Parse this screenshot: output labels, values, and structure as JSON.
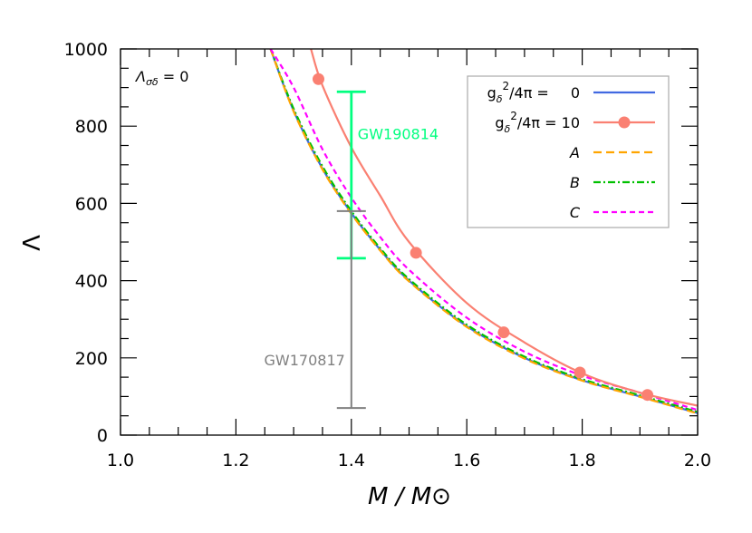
{
  "chart_data": {
    "type": "line",
    "title": "",
    "xlabel": "M / M⊙",
    "ylabel": "Λ",
    "xlim": [
      1.0,
      2.0
    ],
    "ylim": [
      0,
      1000
    ],
    "xticks": [
      "1.0",
      "1.2",
      "1.4",
      "1.6",
      "1.8",
      "2.0"
    ],
    "yticks": [
      "0",
      "200",
      "400",
      "600",
      "800",
      "1000"
    ],
    "grid": false,
    "corner_annotation": {
      "main": "Λ",
      "sub": "σδ",
      "rest": " = 0"
    },
    "legend": {
      "position": "upper right",
      "entries": [
        {
          "label_main": "g",
          "label_sub": "δ",
          "label_sup": "2",
          "label_rest": "/4π =   0",
          "color": "#4169e1",
          "style": "solid",
          "marker": "none"
        },
        {
          "label_main": "g",
          "label_sub": "δ",
          "label_sup": "2",
          "label_rest": "/4π = 10",
          "color": "#fa8072",
          "style": "solid",
          "marker": "circle"
        },
        {
          "label": "A",
          "color": "#ffa500",
          "style": "dashed",
          "marker": "none"
        },
        {
          "label": "B",
          "color": "#00c000",
          "style": "dashdot",
          "marker": "none"
        },
        {
          "label": "C",
          "color": "#ff00ff",
          "style": "dotted-dash",
          "marker": "none"
        }
      ]
    },
    "x": [
      1.26,
      1.3,
      1.35,
      1.4,
      1.45,
      1.5,
      1.6,
      1.7,
      1.8,
      1.9,
      2.0
    ],
    "series": [
      {
        "name": "g_delta^2/4pi = 0",
        "color": "#4169e1",
        "values": [
          1000,
          840,
          690,
          575,
          480,
          400,
          282,
          200,
          142,
          100,
          57
        ]
      },
      {
        "name": "A",
        "color": "#ffa500",
        "values": [
          1000,
          838,
          688,
          573,
          478,
          398,
          280,
          198,
          141,
          99,
          56
        ]
      },
      {
        "name": "B",
        "color": "#00c000",
        "values": [
          1000,
          845,
          696,
          580,
          484,
          404,
          286,
          203,
          145,
          103,
          60
        ]
      },
      {
        "name": "C",
        "color": "#ff00ff",
        "values": [
          1000,
          900,
          740,
          615,
          513,
          428,
          304,
          216,
          154,
          110,
          65
        ]
      },
      {
        "name": "g_delta^2/4pi = 10",
        "color": "#fa8072",
        "x_override": [
          1.33,
          1.35,
          1.4,
          1.45,
          1.5,
          1.6,
          1.7,
          1.8,
          1.9,
          2.0
        ],
        "values": [
          1000,
          905,
          745,
          620,
          500,
          342,
          240,
          160,
          110,
          76
        ]
      }
    ],
    "markers_g10": {
      "x": [
        1.343,
        1.512,
        1.664,
        1.796,
        1.913
      ],
      "y": [
        922,
        472,
        266,
        162,
        104
      ]
    },
    "error_bars": [
      {
        "label": "GW190814",
        "x": 1.4,
        "low": 458,
        "high": 889,
        "color": "#00ff7f"
      },
      {
        "label": "GW170817",
        "x": 1.4,
        "low": 70,
        "high": 580,
        "color": "#808080"
      }
    ]
  }
}
